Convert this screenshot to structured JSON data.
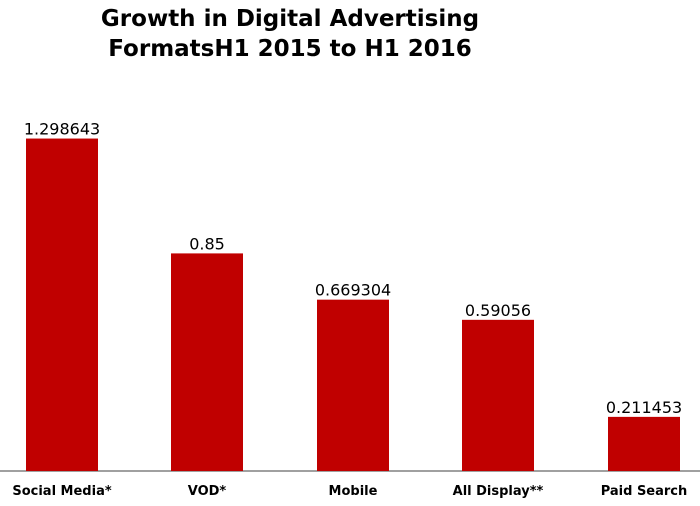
{
  "chart_data": {
    "type": "bar",
    "title_line1": "Growth in Digital Advertising",
    "title_line2": "FormatsH1 2015 to H1 2016",
    "categories": [
      "Social Media*",
      "VOD*",
      "Mobile",
      "All Display**",
      "Paid Search"
    ],
    "values": [
      1.298643,
      0.85,
      0.669304,
      0.59056,
      0.211453
    ],
    "value_labels": [
      "1.298643",
      "0.85",
      "0.669304",
      "0.59056",
      "0.211453"
    ],
    "ylim": [
      0,
      1.4
    ],
    "bar_color": "#c00000",
    "axis_color": "#808080",
    "grid": false,
    "legend": "none"
  }
}
